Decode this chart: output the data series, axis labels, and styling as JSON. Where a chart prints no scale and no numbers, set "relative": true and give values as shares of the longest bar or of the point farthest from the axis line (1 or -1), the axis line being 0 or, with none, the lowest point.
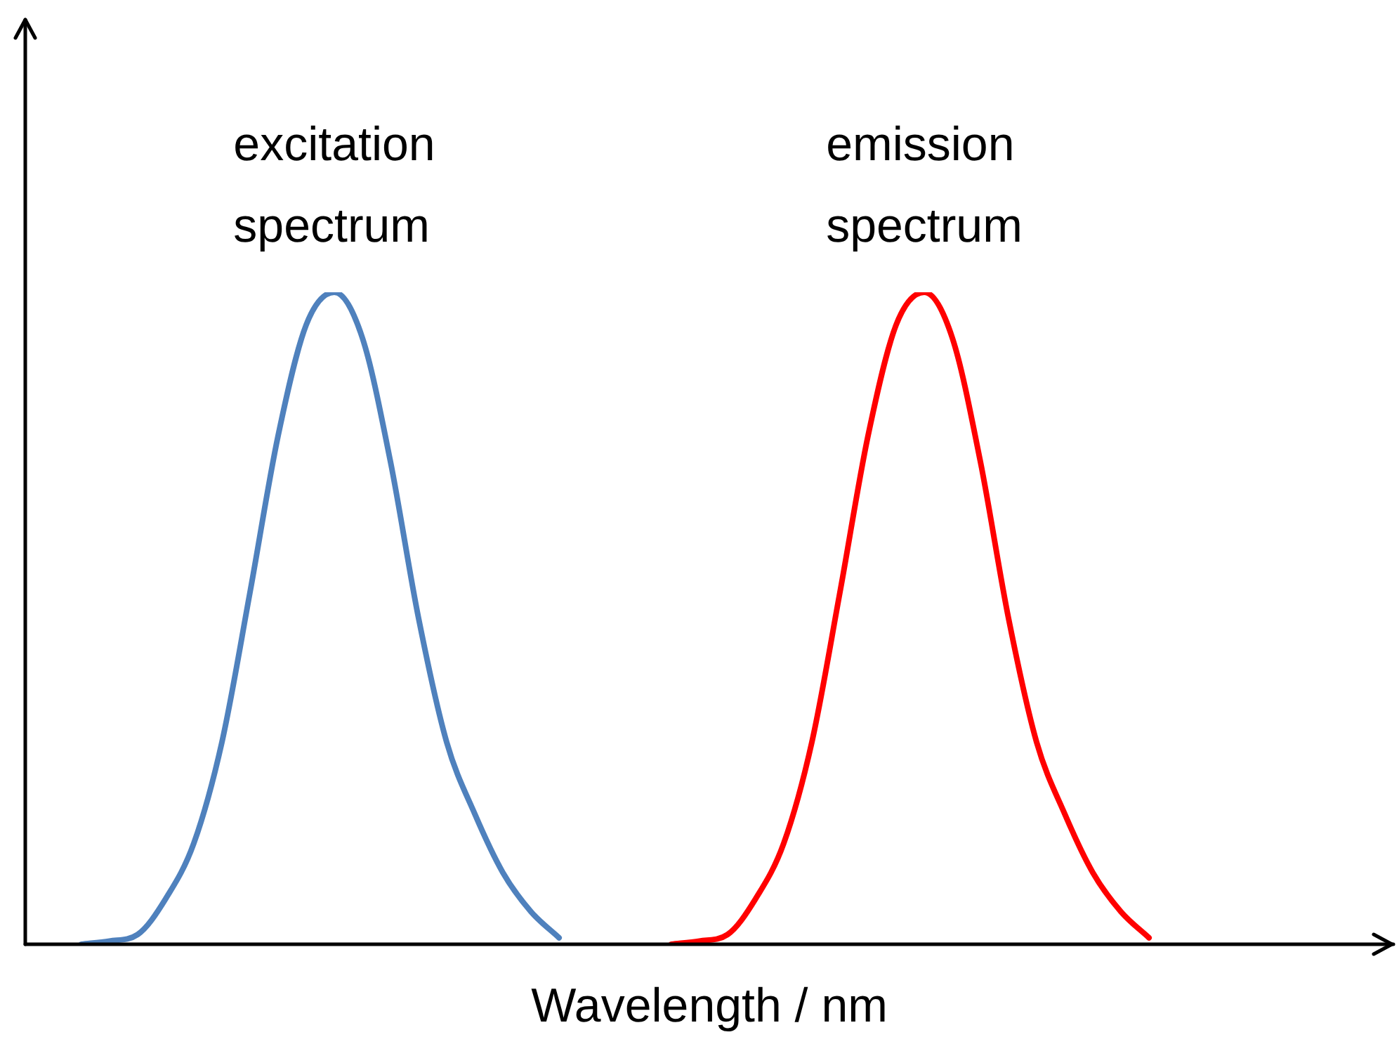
{
  "chart_data": {
    "type": "line",
    "xlabel": "Wavelength / nm",
    "relative": true,
    "tick_labels": false,
    "categories": [
      null,
      null,
      null,
      null,
      null,
      null,
      null,
      null,
      null,
      null,
      null,
      null,
      null,
      null,
      null,
      null,
      null,
      null,
      null,
      null,
      null,
      null,
      null,
      null,
      null,
      null,
      null,
      null,
      null,
      null,
      null,
      null,
      null,
      null,
      null,
      null,
      null,
      null,
      null,
      null,
      null,
      null,
      null,
      null,
      null,
      null,
      null,
      null,
      null
    ],
    "series": [
      {
        "name": "excitation spectrum",
        "color": "#4f81bd",
        "values": [
          null,
          null,
          0,
          0.005,
          0.015,
          0.07,
          0.155,
          0.31,
          0.54,
          0.78,
          0.95,
          1,
          0.93,
          0.74,
          0.5,
          0.31,
          0.2,
          0.11,
          0.05,
          0.01,
          null,
          null,
          null,
          null,
          null,
          null,
          null,
          null,
          null,
          null,
          null,
          null,
          null,
          null,
          null,
          null,
          null,
          null,
          null,
          null,
          null,
          null,
          null,
          null,
          null,
          null,
          null,
          null,
          null
        ]
      },
      {
        "name": "emission spectrum",
        "color": "#ff0000",
        "values": [
          null,
          null,
          null,
          null,
          null,
          null,
          null,
          null,
          null,
          null,
          null,
          null,
          null,
          null,
          null,
          null,
          null,
          null,
          null,
          null,
          null,
          null,
          null,
          0,
          0.005,
          0.015,
          0.07,
          0.155,
          0.31,
          0.54,
          0.78,
          0.95,
          1,
          0.93,
          0.74,
          0.5,
          0.31,
          0.2,
          0.11,
          0.05,
          0.01,
          null,
          null,
          null,
          null,
          null,
          null,
          null,
          null
        ]
      }
    ]
  }
}
